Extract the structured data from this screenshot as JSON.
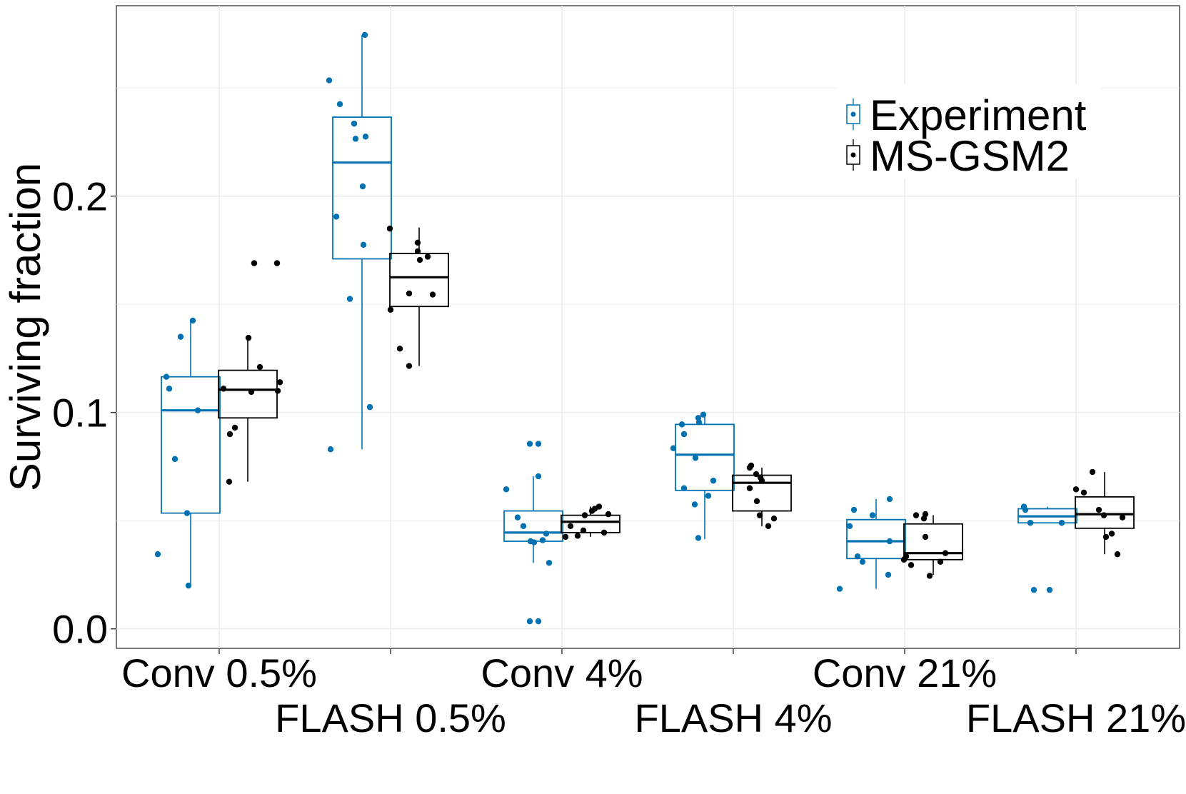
{
  "chart_data": {
    "type": "boxplot",
    "title": "",
    "xlabel": "",
    "ylabel": "Surviving fraction",
    "ylim": [
      -0.009,
      0.288
    ],
    "yticks": [
      0.0,
      0.1,
      0.2
    ],
    "ytick_labels": [
      "0.0",
      "0.1",
      "0.2"
    ],
    "categories": [
      "Conv 0.5%",
      "FLASH 0.5%",
      "Conv 4%",
      "FLASH 4%",
      "Conv 21%",
      "FLASH 21%"
    ],
    "grid": true,
    "legend_position": "top-right",
    "series": [
      {
        "name": "Experiment",
        "color": "#0072b2",
        "boxes": [
          {
            "q1": 0.0535,
            "median": 0.101,
            "q3": 0.1165,
            "whisker_low": 0.02,
            "whisker_high": 0.1425
          },
          {
            "q1": 0.171,
            "median": 0.2155,
            "q3": 0.2365,
            "whisker_low": 0.083,
            "whisker_high": 0.2745
          },
          {
            "q1": 0.0405,
            "median": 0.0445,
            "q3": 0.0545,
            "whisker_low": 0.0305,
            "whisker_high": 0.0705
          },
          {
            "q1": 0.064,
            "median": 0.0805,
            "q3": 0.0945,
            "whisker_low": 0.0415,
            "whisker_high": 0.099
          },
          {
            "q1": 0.0325,
            "median": 0.0405,
            "q3": 0.0505,
            "whisker_low": 0.0185,
            "whisker_high": 0.06
          },
          {
            "q1": 0.049,
            "median": 0.052,
            "q3": 0.0555,
            "whisker_low": 0.049,
            "whisker_high": 0.0565
          }
        ],
        "points": [
          [
            0.0345,
            0.1165,
            0.111,
            0.135,
            0.0785,
            0.0535,
            0.02,
            0.1425,
            0.101
          ],
          [
            0.2535,
            0.2425,
            0.1905,
            0.2335,
            0.2265,
            0.2275,
            0.1025,
            0.083,
            0.2045,
            0.1775,
            0.1525,
            0.2745
          ],
          [
            0.0645,
            0.0515,
            0.0475,
            0.0855,
            0.0855,
            0.0705,
            0.0405,
            0.04,
            0.0035,
            0.0035,
            0.044,
            0.0305,
            0.041
          ],
          [
            0.0835,
            0.09,
            0.0945,
            0.0975,
            0.099,
            0.0955,
            0.065,
            0.079,
            0.0575,
            0.0615,
            0.0685,
            0.042
          ],
          [
            0.0185,
            0.0475,
            0.055,
            0.0335,
            0.031,
            0.0525,
            0.06,
            0.025,
            0.0405
          ],
          [
            0.0565,
            0.055,
            0.049,
            0.018,
            0.018,
            0.049
          ]
        ]
      },
      {
        "name": "MS-GSM2",
        "color": "#000000",
        "boxes": [
          {
            "q1": 0.0975,
            "median": 0.1105,
            "q3": 0.1195,
            "whisker_low": 0.068,
            "whisker_high": 0.1345
          },
          {
            "q1": 0.149,
            "median": 0.1625,
            "q3": 0.1735,
            "whisker_low": 0.1215,
            "whisker_high": 0.1855
          },
          {
            "q1": 0.0445,
            "median": 0.0495,
            "q3": 0.0525,
            "whisker_low": 0.0425,
            "whisker_high": 0.0565
          },
          {
            "q1": 0.0545,
            "median": 0.0675,
            "q3": 0.071,
            "whisker_low": 0.0475,
            "whisker_high": 0.0745
          },
          {
            "q1": 0.032,
            "median": 0.035,
            "q3": 0.0485,
            "whisker_low": 0.025,
            "whisker_high": 0.0525
          },
          {
            "q1": 0.0465,
            "median": 0.053,
            "q3": 0.061,
            "whisker_low": 0.0345,
            "whisker_high": 0.0725
          }
        ],
        "points": [
          [
            0.111,
            0.09,
            0.093,
            0.068,
            0.1345,
            0.169,
            0.121,
            0.1095,
            0.169,
            0.114,
            0.11
          ],
          [
            0.185,
            0.1475,
            0.155,
            0.1295,
            0.1215,
            0.1745,
            0.1705,
            0.172,
            0.1785,
            0.1545
          ],
          [
            0.0425,
            0.0475,
            0.043,
            0.0525,
            0.0545,
            0.0555,
            0.0565,
            0.0455,
            0.0445,
            0.053
          ],
          [
            0.0745,
            0.0755,
            0.065,
            0.0715,
            0.07,
            0.0685,
            0.059,
            0.0525,
            0.0475,
            0.051
          ],
          [
            0.032,
            0.0335,
            0.0295,
            0.0525,
            0.051,
            0.053,
            0.0245,
            0.0425,
            0.031,
            0.035
          ],
          [
            0.0645,
            0.063,
            0.0725,
            0.055,
            0.0525,
            0.0425,
            0.044,
            0.0345,
            0.0515
          ]
        ]
      }
    ]
  }
}
